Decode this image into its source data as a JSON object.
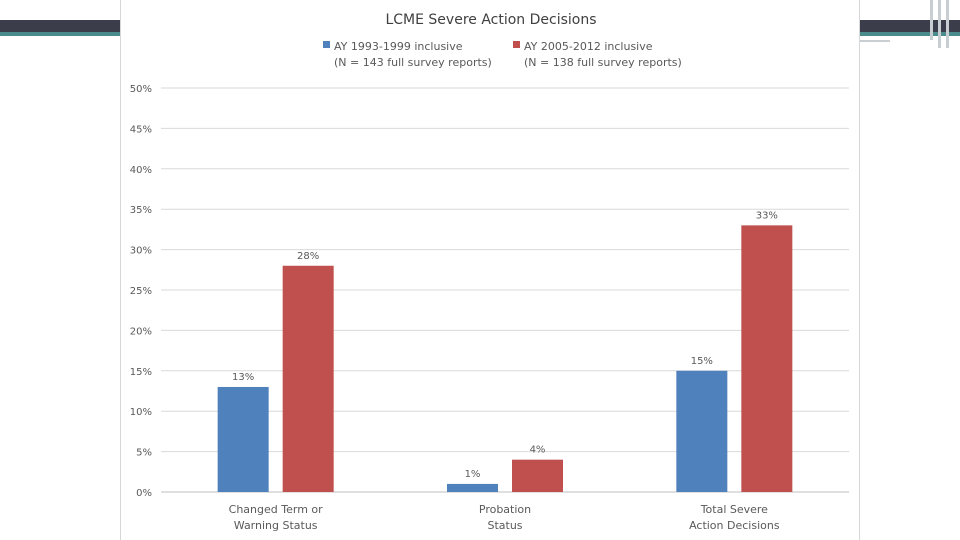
{
  "chart_data": {
    "type": "bar",
    "title": "LCME Severe Action Decisions",
    "categories": [
      [
        "Changed Term or",
        "Warning Status"
      ],
      [
        "Probation",
        "Status"
      ],
      [
        "Total Severe",
        "Action Decisions"
      ]
    ],
    "series": [
      {
        "name_lines": [
          "AY 1993-1999 inclusive",
          "(N = 143 full survey reports)"
        ],
        "values": [
          13,
          1,
          15
        ],
        "labels": [
          "13%",
          "1%",
          "15%"
        ],
        "color": "#4f81bd"
      },
      {
        "name_lines": [
          "AY 2005-2012 inclusive",
          "(N = 138 full survey reports)"
        ],
        "values": [
          28,
          4,
          33
        ],
        "labels": [
          "28%",
          "4%",
          "33%"
        ],
        "color": "#c0504d"
      }
    ],
    "y_ticks": [
      "0%",
      "5%",
      "10%",
      "15%",
      "20%",
      "25%",
      "30%",
      "35%",
      "40%",
      "45%",
      "50%"
    ],
    "ylim": [
      0,
      50
    ],
    "grid": true,
    "legend_position": "top"
  },
  "colors": {
    "grid": "#d9d9d9",
    "axis": "#bfbfbf",
    "text": "#595959",
    "title": "#404040"
  }
}
